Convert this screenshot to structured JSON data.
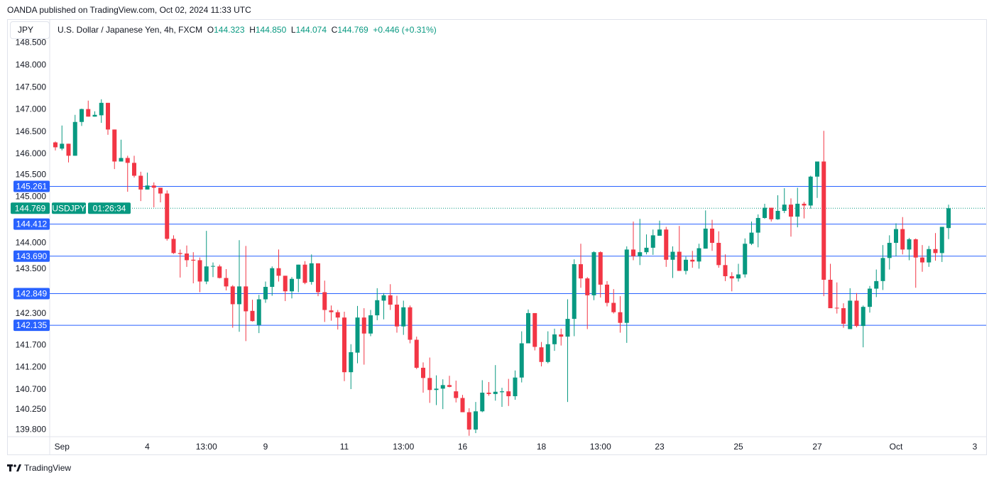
{
  "publisher_line": "OANDA published on TradingView.com, Oct 02, 2024 11:33 UTC",
  "symbol_box": "JPY",
  "legend": {
    "title": "U.S. Dollar / Japanese Yen, 4h, FXCM",
    "o_label": "O",
    "o": "144.323",
    "h_label": "H",
    "h": "144.850",
    "l_label": "L",
    "l": "144.074",
    "c_label": "C",
    "c": "144.769",
    "change": "+0.446 (+0.31%)"
  },
  "footer": {
    "brand": "TradingView"
  },
  "colors": {
    "up": "#089981",
    "down": "#f23645",
    "level": "#2962ff",
    "grid_border": "#e0e3eb"
  },
  "chart_data": {
    "type": "candlestick",
    "title": "U.S. Dollar / Japanese Yen, 4h, FXCM",
    "ylim": [
      139.8,
      148.5
    ],
    "y_ticks": [
      "148.500",
      "148.000",
      "147.500",
      "147.000",
      "146.500",
      "146.000",
      "145.500",
      "145.000",
      "144.000",
      "143.500",
      "142.300",
      "141.700",
      "141.200",
      "140.700",
      "140.250",
      "139.800"
    ],
    "x_ticks": [
      {
        "label": "Sep",
        "index": 2
      },
      {
        "label": "4",
        "index": 15
      },
      {
        "label": "13:00",
        "index": 24
      },
      {
        "label": "9",
        "index": 33
      },
      {
        "label": "11",
        "index": 45
      },
      {
        "label": "13:00",
        "index": 54
      },
      {
        "label": "16",
        "index": 63
      },
      {
        "label": "18",
        "index": 75
      },
      {
        "label": "13:00",
        "index": 84
      },
      {
        "label": "23",
        "index": 93
      },
      {
        "label": "25",
        "index": 105
      },
      {
        "label": "27",
        "index": 117
      },
      {
        "label": "Oct",
        "index": 129
      },
      {
        "label": "3",
        "index": 141
      }
    ],
    "levels": [
      {
        "label": "145.261",
        "value": 145.261
      },
      {
        "label": "144.412",
        "value": 144.412
      },
      {
        "label": "143.690",
        "value": 143.69
      },
      {
        "label": "142.849",
        "value": 142.849
      },
      {
        "label": "142.135",
        "value": 142.135
      }
    ],
    "last_price": {
      "label": "144.769",
      "value": 144.769,
      "countdown": "01:26:34",
      "symbol": "USDJPY"
    },
    "ohlc_fields": [
      "open",
      "high",
      "low",
      "close"
    ],
    "ohlc": [
      [
        146.25,
        146.27,
        146.07,
        146.14
      ],
      [
        146.11,
        146.63,
        146.07,
        146.22
      ],
      [
        146.22,
        146.22,
        145.8,
        145.95
      ],
      [
        145.95,
        146.87,
        145.95,
        146.71
      ],
      [
        146.71,
        147.01,
        146.62,
        147.0
      ],
      [
        147.0,
        147.19,
        146.83,
        146.83
      ],
      [
        146.83,
        146.95,
        146.83,
        146.87
      ],
      [
        146.86,
        147.22,
        146.69,
        147.14
      ],
      [
        147.14,
        147.14,
        146.42,
        146.54
      ],
      [
        146.54,
        146.54,
        145.65,
        145.82
      ],
      [
        145.82,
        146.31,
        145.82,
        145.9
      ],
      [
        145.9,
        145.95,
        145.14,
        145.79
      ],
      [
        145.79,
        145.95,
        145.46,
        145.5
      ],
      [
        145.5,
        145.59,
        144.93,
        145.19
      ],
      [
        145.19,
        145.57,
        145.19,
        145.28
      ],
      [
        145.28,
        145.35,
        144.79,
        145.23
      ],
      [
        145.23,
        145.23,
        144.9,
        145.1
      ],
      [
        145.1,
        145.17,
        144.04,
        144.08
      ],
      [
        144.08,
        144.16,
        143.74,
        143.76
      ],
      [
        143.76,
        143.84,
        143.21,
        143.74
      ],
      [
        143.75,
        143.93,
        143.45,
        143.6
      ],
      [
        143.61,
        143.78,
        143.08,
        143.59
      ],
      [
        143.6,
        143.66,
        142.88,
        143.12
      ],
      [
        143.12,
        144.26,
        143.06,
        143.46
      ],
      [
        143.46,
        143.55,
        143.22,
        143.47
      ],
      [
        143.46,
        143.5,
        143.19,
        143.2
      ],
      [
        143.2,
        143.4,
        142.92,
        143.01
      ],
      [
        143.01,
        143.04,
        142.08,
        142.61
      ],
      [
        142.61,
        144.05,
        141.99,
        143.01
      ],
      [
        143.01,
        143.92,
        141.78,
        142.45
      ],
      [
        142.46,
        142.71,
        142.22,
        142.23
      ],
      [
        142.14,
        142.82,
        141.96,
        142.72
      ],
      [
        142.72,
        143.12,
        142.64,
        143.0
      ],
      [
        143.0,
        143.46,
        142.8,
        143.42
      ],
      [
        143.42,
        143.84,
        143.12,
        143.25
      ],
      [
        143.25,
        143.25,
        142.68,
        142.9
      ],
      [
        142.9,
        143.22,
        142.74,
        143.18
      ],
      [
        143.18,
        143.5,
        142.88,
        143.5
      ],
      [
        143.5,
        143.58,
        143.06,
        143.09
      ],
      [
        143.11,
        143.73,
        143.05,
        143.53
      ],
      [
        143.53,
        143.53,
        142.79,
        142.88
      ],
      [
        142.88,
        143.14,
        142.21,
        142.48
      ],
      [
        142.47,
        142.58,
        142.24,
        142.43
      ],
      [
        142.43,
        142.48,
        142.04,
        142.31
      ],
      [
        142.31,
        142.44,
        140.88,
        141.08
      ],
      [
        141.08,
        141.71,
        140.7,
        141.53
      ],
      [
        141.52,
        142.57,
        141.28,
        142.31
      ],
      [
        142.31,
        142.52,
        141.25,
        141.95
      ],
      [
        141.95,
        142.48,
        141.89,
        142.36
      ],
      [
        142.36,
        142.97,
        142.25,
        142.7
      ],
      [
        142.69,
        142.86,
        142.27,
        142.81
      ],
      [
        142.81,
        143.06,
        142.48,
        142.6
      ],
      [
        142.6,
        142.8,
        141.97,
        142.11
      ],
      [
        142.11,
        142.69,
        141.92,
        142.54
      ],
      [
        142.54,
        142.58,
        141.73,
        141.81
      ],
      [
        141.81,
        141.88,
        141.15,
        141.18
      ],
      [
        141.18,
        141.3,
        140.62,
        140.95
      ],
      [
        140.95,
        141.41,
        140.39,
        140.68
      ],
      [
        140.68,
        141.01,
        140.34,
        140.71
      ],
      [
        140.71,
        140.92,
        140.25,
        140.79
      ],
      [
        140.79,
        141.0,
        140.74,
        140.75
      ],
      [
        140.65,
        140.89,
        140.4,
        140.5
      ],
      [
        140.5,
        140.57,
        140.18,
        140.18
      ],
      [
        140.18,
        140.27,
        139.65,
        139.79
      ],
      [
        139.79,
        140.41,
        139.71,
        140.2
      ],
      [
        140.2,
        140.9,
        140.18,
        140.62
      ],
      [
        140.62,
        140.86,
        140.55,
        140.59
      ],
      [
        140.59,
        141.24,
        140.44,
        140.64
      ],
      [
        140.63,
        140.73,
        140.3,
        140.65
      ],
      [
        140.65,
        140.93,
        140.32,
        140.54
      ],
      [
        140.54,
        141.12,
        140.46,
        140.96
      ],
      [
        140.96,
        142.0,
        140.85,
        141.73
      ],
      [
        141.73,
        142.49,
        141.73,
        142.41
      ],
      [
        142.41,
        142.41,
        141.57,
        141.65
      ],
      [
        141.64,
        141.76,
        141.21,
        141.31
      ],
      [
        141.31,
        142.0,
        141.28,
        141.71
      ],
      [
        141.71,
        142.06,
        141.56,
        141.93
      ],
      [
        141.93,
        142.06,
        141.68,
        141.88
      ],
      [
        141.88,
        142.72,
        140.41,
        142.28
      ],
      [
        142.28,
        143.62,
        141.89,
        143.51
      ],
      [
        143.51,
        143.97,
        142.98,
        143.19
      ],
      [
        143.19,
        143.22,
        142.05,
        142.81
      ],
      [
        142.81,
        143.8,
        142.7,
        143.78
      ],
      [
        143.78,
        143.8,
        142.76,
        143.05
      ],
      [
        143.05,
        143.13,
        142.56,
        142.64
      ],
      [
        142.64,
        142.95,
        142.4,
        142.43
      ],
      [
        142.43,
        142.79,
        141.97,
        142.19
      ],
      [
        142.19,
        143.91,
        141.74,
        143.84
      ],
      [
        143.84,
        144.47,
        143.6,
        143.69
      ],
      [
        143.69,
        144.53,
        143.49,
        143.78
      ],
      [
        143.78,
        144.18,
        143.73,
        143.88
      ],
      [
        143.88,
        144.29,
        143.72,
        144.16
      ],
      [
        144.15,
        144.49,
        144.15,
        144.29
      ],
      [
        144.29,
        144.35,
        143.45,
        143.61
      ],
      [
        143.61,
        143.91,
        143.2,
        143.79
      ],
      [
        143.79,
        144.37,
        143.36,
        143.36
      ],
      [
        143.36,
        143.68,
        143.28,
        143.61
      ],
      [
        143.61,
        143.81,
        143.43,
        143.57
      ],
      [
        143.57,
        143.97,
        143.41,
        143.87
      ],
      [
        143.86,
        144.72,
        143.86,
        144.31
      ],
      [
        144.31,
        144.51,
        143.81,
        143.99
      ],
      [
        143.99,
        144.25,
        143.43,
        143.49
      ],
      [
        143.49,
        143.73,
        143.13,
        143.24
      ],
      [
        143.24,
        143.33,
        142.9,
        143.19
      ],
      [
        143.19,
        143.52,
        143.12,
        143.28
      ],
      [
        143.28,
        144.09,
        143.21,
        143.97
      ],
      [
        143.97,
        144.47,
        143.94,
        144.22
      ],
      [
        144.22,
        144.63,
        143.89,
        144.55
      ],
      [
        144.55,
        144.87,
        144.53,
        144.78
      ],
      [
        144.78,
        144.78,
        144.47,
        144.52
      ],
      [
        144.52,
        145.06,
        144.51,
        144.71
      ],
      [
        144.71,
        145.22,
        144.66,
        144.85
      ],
      [
        144.85,
        144.99,
        144.13,
        144.58
      ],
      [
        144.58,
        145.23,
        144.34,
        144.87
      ],
      [
        144.87,
        144.91,
        144.54,
        144.83
      ],
      [
        144.83,
        145.5,
        144.76,
        145.48
      ],
      [
        145.48,
        145.82,
        145.0,
        145.82
      ],
      [
        145.82,
        146.51,
        142.79,
        143.16
      ],
      [
        143.16,
        143.52,
        142.52,
        142.52
      ],
      [
        142.53,
        143.1,
        142.4,
        142.52
      ],
      [
        142.52,
        142.63,
        142.08,
        142.17
      ],
      [
        142.05,
        142.97,
        142.05,
        142.69
      ],
      [
        142.69,
        142.86,
        142.09,
        142.12
      ],
      [
        142.12,
        142.58,
        141.64,
        142.55
      ],
      [
        142.55,
        143.02,
        142.42,
        142.96
      ],
      [
        142.96,
        143.39,
        142.77,
        143.13
      ],
      [
        143.13,
        143.94,
        142.93,
        143.65
      ],
      [
        143.65,
        144.16,
        143.39,
        143.99
      ],
      [
        143.99,
        144.43,
        143.69,
        144.3
      ],
      [
        144.3,
        144.57,
        143.73,
        143.84
      ],
      [
        143.84,
        144.1,
        143.6,
        144.07
      ],
      [
        144.07,
        144.09,
        142.98,
        143.66
      ],
      [
        143.66,
        143.94,
        143.34,
        143.55
      ],
      [
        143.55,
        143.92,
        143.45,
        143.85
      ],
      [
        143.85,
        144.21,
        143.59,
        143.76
      ],
      [
        143.76,
        144.35,
        143.56,
        144.35
      ],
      [
        144.323,
        144.85,
        144.074,
        144.769
      ]
    ]
  }
}
